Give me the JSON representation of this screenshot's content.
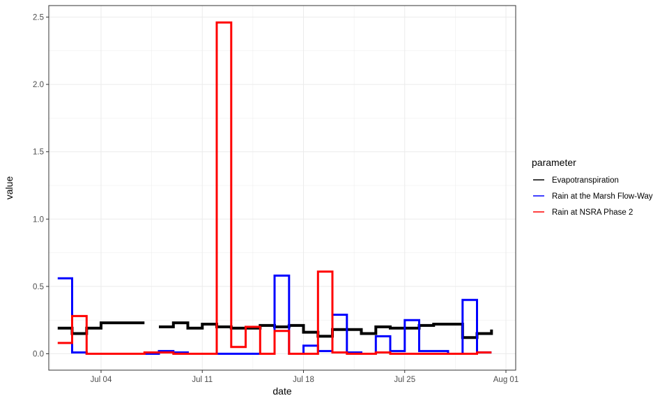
{
  "chart_data": {
    "type": "line",
    "xlabel": "date",
    "ylabel": "value",
    "ylim": [
      -0.1,
      2.58
    ],
    "xlim": [
      "2018-06-30",
      "2018-08-01"
    ],
    "x_ticks": [
      {
        "date": "2018-07-04",
        "label": "Jul 04"
      },
      {
        "date": "2018-07-11",
        "label": "Jul 11"
      },
      {
        "date": "2018-07-18",
        "label": "Jul 18"
      },
      {
        "date": "2018-07-25",
        "label": "Jul 25"
      },
      {
        "date": "2018-08-01",
        "label": "Aug 01"
      }
    ],
    "y_ticks": [
      0,
      0.5,
      1.0,
      1.5,
      2.0,
      2.5
    ],
    "y_tick_labels": [
      "0.0",
      "0.5",
      "1.0",
      "1.5",
      "2.0",
      "2.5"
    ],
    "grid": true,
    "legend": {
      "title": "parameter",
      "position": "right"
    },
    "series": [
      {
        "name": "Evapotranspiration",
        "color": "#000000",
        "step": true,
        "points": [
          {
            "x": "2018-07-01",
            "y": 0.19
          },
          {
            "x": "2018-07-02",
            "y": 0.15
          },
          {
            "x": "2018-07-03",
            "y": 0.19
          },
          {
            "x": "2018-07-04",
            "y": 0.23
          },
          {
            "x": "2018-07-05",
            "y": 0.23
          },
          {
            "x": "2018-07-06",
            "y": 0.23
          },
          {
            "x": "2018-07-07",
            "y": null
          },
          {
            "x": "2018-07-08",
            "y": 0.2
          },
          {
            "x": "2018-07-09",
            "y": 0.23
          },
          {
            "x": "2018-07-10",
            "y": 0.19
          },
          {
            "x": "2018-07-11",
            "y": 0.22
          },
          {
            "x": "2018-07-12",
            "y": 0.2
          },
          {
            "x": "2018-07-13",
            "y": 0.19
          },
          {
            "x": "2018-07-14",
            "y": 0.19
          },
          {
            "x": "2018-07-15",
            "y": 0.21
          },
          {
            "x": "2018-07-16",
            "y": 0.2
          },
          {
            "x": "2018-07-17",
            "y": 0.21
          },
          {
            "x": "2018-07-18",
            "y": 0.16
          },
          {
            "x": "2018-07-19",
            "y": 0.13
          },
          {
            "x": "2018-07-20",
            "y": 0.18
          },
          {
            "x": "2018-07-21",
            "y": 0.18
          },
          {
            "x": "2018-07-22",
            "y": 0.15
          },
          {
            "x": "2018-07-23",
            "y": 0.2
          },
          {
            "x": "2018-07-24",
            "y": 0.19
          },
          {
            "x": "2018-07-25",
            "y": 0.19
          },
          {
            "x": "2018-07-26",
            "y": 0.21
          },
          {
            "x": "2018-07-27",
            "y": 0.22
          },
          {
            "x": "2018-07-28",
            "y": 0.22
          },
          {
            "x": "2018-07-29",
            "y": 0.12
          },
          {
            "x": "2018-07-30",
            "y": 0.15
          },
          {
            "x": "2018-07-31",
            "y": 0.18
          }
        ]
      },
      {
        "name": "Rain at the Marsh Flow-Way",
        "color": "#0000ff",
        "step": true,
        "points": [
          {
            "x": "2018-07-01",
            "y": 0.56
          },
          {
            "x": "2018-07-02",
            "y": 0.01
          },
          {
            "x": "2018-07-03",
            "y": 0.0
          },
          {
            "x": "2018-07-04",
            "y": 0.0
          },
          {
            "x": "2018-07-05",
            "y": 0.0
          },
          {
            "x": "2018-07-06",
            "y": null
          },
          {
            "x": "2018-07-07",
            "y": 0.0
          },
          {
            "x": "2018-07-08",
            "y": 0.02
          },
          {
            "x": "2018-07-09",
            "y": 0.01
          },
          {
            "x": "2018-07-10",
            "y": 0.0
          },
          {
            "x": "2018-07-11",
            "y": 0.0
          },
          {
            "x": "2018-07-12",
            "y": 0.0
          },
          {
            "x": "2018-07-13",
            "y": 0.0
          },
          {
            "x": "2018-07-14",
            "y": 0.0
          },
          {
            "x": "2018-07-15",
            "y": 0.0
          },
          {
            "x": "2018-07-16",
            "y": 0.58
          },
          {
            "x": "2018-07-17",
            "y": 0.0
          },
          {
            "x": "2018-07-18",
            "y": 0.06
          },
          {
            "x": "2018-07-19",
            "y": 0.02
          },
          {
            "x": "2018-07-20",
            "y": 0.29
          },
          {
            "x": "2018-07-21",
            "y": 0.01
          },
          {
            "x": "2018-07-22",
            "y": 0.0
          },
          {
            "x": "2018-07-23",
            "y": 0.13
          },
          {
            "x": "2018-07-24",
            "y": 0.02
          },
          {
            "x": "2018-07-25",
            "y": 0.25
          },
          {
            "x": "2018-07-26",
            "y": 0.02
          },
          {
            "x": "2018-07-27",
            "y": 0.02
          },
          {
            "x": "2018-07-28",
            "y": 0.0
          },
          {
            "x": "2018-07-29",
            "y": 0.4
          },
          {
            "x": "2018-07-30",
            "y": 0.01
          },
          {
            "x": "2018-07-31",
            "y": 0.01
          }
        ]
      },
      {
        "name": "Rain at NSRA Phase 2",
        "color": "#ff0000",
        "step": true,
        "points": [
          {
            "x": "2018-07-01",
            "y": 0.08
          },
          {
            "x": "2018-07-02",
            "y": 0.28
          },
          {
            "x": "2018-07-03",
            "y": 0.0
          },
          {
            "x": "2018-07-04",
            "y": 0.0
          },
          {
            "x": "2018-07-05",
            "y": 0.0
          },
          {
            "x": "2018-07-06",
            "y": 0.0
          },
          {
            "x": "2018-07-07",
            "y": 0.01
          },
          {
            "x": "2018-07-08",
            "y": 0.01
          },
          {
            "x": "2018-07-09",
            "y": 0.0
          },
          {
            "x": "2018-07-10",
            "y": 0.0
          },
          {
            "x": "2018-07-11",
            "y": 0.0
          },
          {
            "x": "2018-07-12",
            "y": 2.46
          },
          {
            "x": "2018-07-13",
            "y": 0.05
          },
          {
            "x": "2018-07-14",
            "y": 0.2
          },
          {
            "x": "2018-07-15",
            "y": 0.0
          },
          {
            "x": "2018-07-16",
            "y": 0.17
          },
          {
            "x": "2018-07-17",
            "y": 0.0
          },
          {
            "x": "2018-07-18",
            "y": 0.0
          },
          {
            "x": "2018-07-19",
            "y": 0.61
          },
          {
            "x": "2018-07-20",
            "y": 0.01
          },
          {
            "x": "2018-07-21",
            "y": 0.0
          },
          {
            "x": "2018-07-22",
            "y": 0.0
          },
          {
            "x": "2018-07-23",
            "y": 0.01
          },
          {
            "x": "2018-07-24",
            "y": 0.0
          },
          {
            "x": "2018-07-25",
            "y": 0.0
          },
          {
            "x": "2018-07-26",
            "y": 0.0
          },
          {
            "x": "2018-07-27",
            "y": 0.0
          },
          {
            "x": "2018-07-28",
            "y": 0.0
          },
          {
            "x": "2018-07-29",
            "y": 0.0
          },
          {
            "x": "2018-07-30",
            "y": 0.01
          },
          {
            "x": "2018-07-31",
            "y": 0.01
          }
        ]
      }
    ]
  }
}
